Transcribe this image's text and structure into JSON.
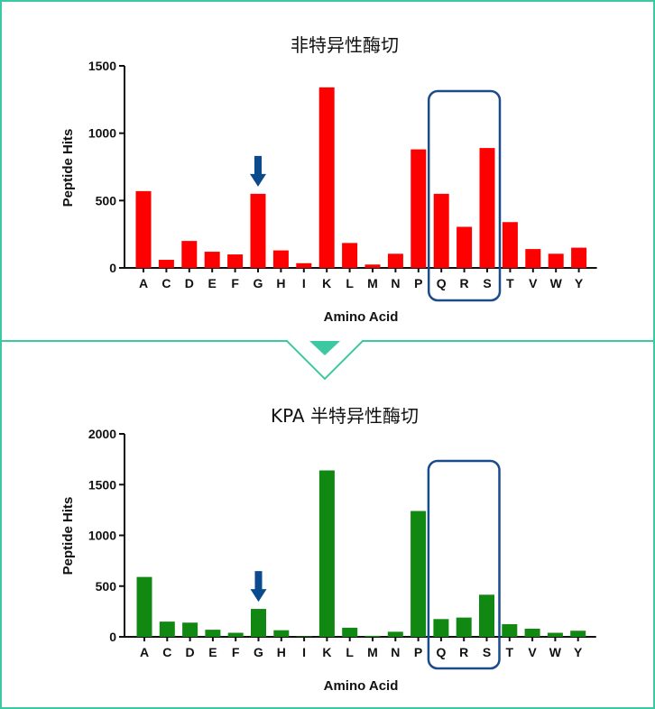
{
  "colors": {
    "frame": "#3cc8a0",
    "top_bar": "#ff0000",
    "bottom_bar": "#118811",
    "highlight_box": "#1a4b8a",
    "arrow": "#0b4a8c"
  },
  "chart_data": [
    {
      "type": "bar",
      "title": "非特异性酶切",
      "xlabel": "Amino Acid",
      "ylabel": "Peptide Hits",
      "categories": [
        "A",
        "C",
        "D",
        "E",
        "F",
        "G",
        "H",
        "I",
        "K",
        "L",
        "M",
        "N",
        "P",
        "Q",
        "R",
        "S",
        "T",
        "V",
        "W",
        "Y"
      ],
      "values": [
        570,
        60,
        200,
        120,
        100,
        550,
        130,
        35,
        1340,
        185,
        25,
        105,
        880,
        550,
        305,
        890,
        340,
        140,
        105,
        150
      ],
      "ylim": [
        0,
        1500
      ],
      "yticks": [
        "0",
        "500",
        "1000",
        "1500"
      ],
      "arrow_on": "G",
      "highlight": [
        "Q",
        "S"
      ]
    },
    {
      "type": "bar",
      "title": "KPA 半特异性酶切",
      "xlabel": "Amino Acid",
      "ylabel": "Peptide Hits",
      "categories": [
        "A",
        "C",
        "D",
        "E",
        "F",
        "G",
        "H",
        "I",
        "K",
        "L",
        "M",
        "N",
        "P",
        "Q",
        "R",
        "S",
        "T",
        "V",
        "W",
        "Y"
      ],
      "values": [
        590,
        150,
        140,
        70,
        40,
        275,
        65,
        5,
        1640,
        90,
        10,
        50,
        1240,
        175,
        190,
        415,
        125,
        80,
        40,
        60
      ],
      "ylim": [
        0,
        2000
      ],
      "yticks": [
        "0",
        "500",
        "1000",
        "1500",
        "2000"
      ],
      "arrow_on": "G",
      "highlight": [
        "Q",
        "S"
      ]
    }
  ]
}
